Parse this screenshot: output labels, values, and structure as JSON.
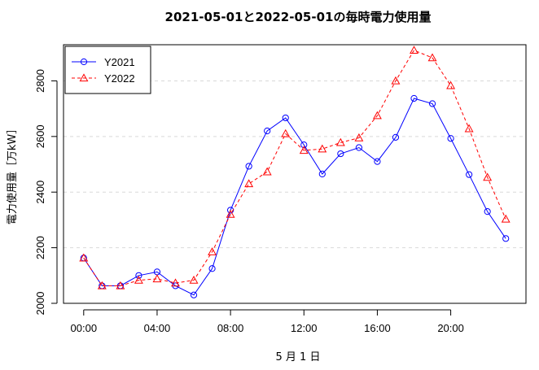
{
  "chart_data": {
    "type": "line",
    "title": "2021-05-01と2022-05-01の毎時電力使用量",
    "xlabel": "5 月 1 日",
    "ylabel": "電力使用量［万kW］",
    "x": [
      0,
      1,
      2,
      3,
      4,
      5,
      6,
      7,
      8,
      9,
      10,
      11,
      12,
      13,
      14,
      15,
      16,
      17,
      18,
      19,
      20,
      21,
      22,
      23
    ],
    "x_ticks": [
      0,
      4,
      8,
      12,
      16,
      20
    ],
    "x_tick_labels": [
      "00:00",
      "04:00",
      "08:00",
      "12:00",
      "16:00",
      "20:00"
    ],
    "y_ticks": [
      2000,
      2200,
      2400,
      2600,
      2800
    ],
    "y_tick_labels": [
      "2000",
      "2200",
      "2400",
      "2600",
      "2800"
    ],
    "xlim": [
      -1.1,
      24.1
    ],
    "ylim": [
      2000,
      2930
    ],
    "grid": "horizontal-dashed",
    "legend_position": "top-left",
    "series": [
      {
        "name": "Y2021",
        "color": "#0000ff",
        "line_style": "solid",
        "marker": "circle",
        "values": [
          2163,
          2063,
          2063,
          2100,
          2113,
          2063,
          2030,
          2125,
          2335,
          2493,
          2620,
          2667,
          2570,
          2465,
          2538,
          2560,
          2510,
          2597,
          2737,
          2718,
          2593,
          2463,
          2330,
          2233
        ]
      },
      {
        "name": "Y2022",
        "color": "#ff0000",
        "line_style": "dashed",
        "marker": "triangle",
        "values": [
          2163,
          2063,
          2063,
          2083,
          2088,
          2073,
          2083,
          2185,
          2320,
          2430,
          2473,
          2610,
          2550,
          2555,
          2578,
          2595,
          2675,
          2800,
          2910,
          2883,
          2783,
          2628,
          2453,
          2303
        ]
      }
    ]
  }
}
